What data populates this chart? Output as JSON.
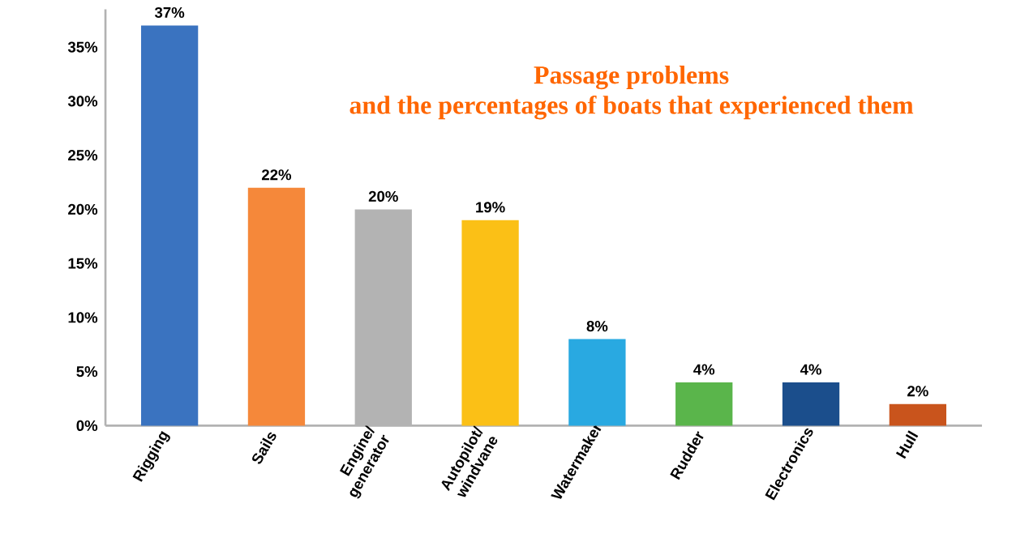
{
  "chart_data": {
    "type": "bar",
    "title": "Passage problems",
    "subtitle": "and the percentages of boats that experienced them",
    "categories": [
      "Rigging",
      "Sails",
      "Engine/ generator",
      "Autopilot/ windvane",
      "Watermaker",
      "Rudder",
      "Electronics",
      "Hull"
    ],
    "values": [
      37,
      22,
      20,
      19,
      8,
      4,
      4,
      2
    ],
    "value_labels": [
      "37%",
      "22%",
      "20%",
      "19%",
      "8%",
      "4%",
      "4%",
      "2%"
    ],
    "colors": [
      "#3a73c0",
      "#f5883a",
      "#b3b3b3",
      "#fbc016",
      "#29a9e1",
      "#5ab54b",
      "#1b4e8c",
      "#c9541c"
    ],
    "ylim": [
      0,
      38.5
    ],
    "yticks": [
      {
        "value": 0,
        "label": "0%"
      },
      {
        "value": 5,
        "label": "5%"
      },
      {
        "value": 10,
        "label": "10%"
      },
      {
        "value": 15,
        "label": "15%"
      },
      {
        "value": 20,
        "label": "20%"
      },
      {
        "value": 25,
        "label": "25%"
      },
      {
        "value": 30,
        "label": "30%"
      },
      {
        "value": 35,
        "label": "35%"
      }
    ],
    "grid": false
  }
}
